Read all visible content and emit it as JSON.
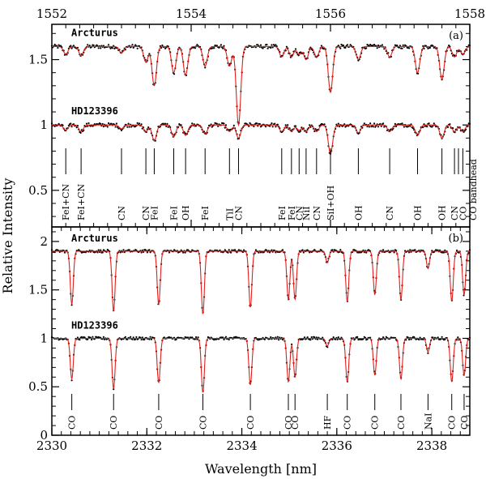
{
  "chart_data": {
    "type": "line",
    "ylabel": "Relative Intensity",
    "panels": [
      {
        "id": "a",
        "label": "(a)",
        "xaxis_position": "top",
        "xlim": [
          1552,
          1558
        ],
        "xticks": [
          1552,
          1554,
          1556,
          1558
        ],
        "xtick_labels": [
          "1552",
          "1554",
          "1556",
          "1558"
        ],
        "ylim": [
          0.22,
          1.77
        ],
        "yticks": [
          0.5,
          1,
          1.5
        ],
        "ytick_labels": [
          "0.5",
          "1",
          "1.5"
        ],
        "offset": 0.6,
        "series": [
          {
            "name": "Arcturus",
            "offset": 0.6
          },
          {
            "name": "HD123396",
            "offset": 0
          }
        ],
        "lines": [
          {
            "x": 1552.2,
            "id": "FeI+CN",
            "depth_arc": 0.06,
            "depth_hd": 0.04
          },
          {
            "x": 1552.42,
            "id": "FeI+CN",
            "depth_arc": 0.07,
            "depth_hd": 0.05
          },
          {
            "x": 1553.0,
            "id": "CN",
            "depth_arc": 0.05,
            "depth_hd": 0.03
          },
          {
            "x": 1553.35,
            "id": "CN",
            "depth_arc": 0.12,
            "depth_hd": 0.05
          },
          {
            "x": 1553.47,
            "id": "FeI",
            "depth_arc": 0.3,
            "depth_hd": 0.12
          },
          {
            "x": 1553.75,
            "id": "FeI",
            "depth_arc": 0.2,
            "depth_hd": 0.09
          },
          {
            "x": 1553.92,
            "id": "OH",
            "depth_arc": 0.22,
            "depth_hd": 0.08
          },
          {
            "x": 1554.2,
            "id": "FeI",
            "depth_arc": 0.15,
            "depth_hd": 0.07
          },
          {
            "x": 1554.55,
            "id": "TiI",
            "depth_arc": 0.15,
            "depth_hd": 0.05
          },
          {
            "x": 1554.68,
            "id": "CN",
            "depth_arc": 0.6,
            "depth_hd": 0.1
          },
          {
            "x": 1555.3,
            "id": "FeI",
            "depth_arc": 0.08,
            "depth_hd": 0.05
          },
          {
            "x": 1555.44,
            "id": "FeI",
            "depth_arc": 0.08,
            "depth_hd": 0.05
          },
          {
            "x": 1555.55,
            "id": "CN",
            "depth_arc": 0.06,
            "depth_hd": 0.04
          },
          {
            "x": 1555.65,
            "id": "NiI",
            "depth_arc": 0.1,
            "depth_hd": 0.05
          },
          {
            "x": 1555.8,
            "id": "CN",
            "depth_arc": 0.08,
            "depth_hd": 0.05
          },
          {
            "x": 1556.0,
            "id": "SiI+OH",
            "depth_arc": 0.35,
            "depth_hd": 0.22
          },
          {
            "x": 1556.4,
            "id": "OH",
            "depth_arc": 0.1,
            "depth_hd": 0.06
          },
          {
            "x": 1556.85,
            "id": "CN",
            "depth_arc": 0.08,
            "depth_hd": 0.05
          },
          {
            "x": 1557.25,
            "id": "OH",
            "depth_arc": 0.2,
            "depth_hd": 0.08
          },
          {
            "x": 1557.6,
            "id": "OH",
            "depth_arc": 0.25,
            "depth_hd": 0.1
          },
          {
            "x": 1557.78,
            "id": "CN",
            "depth_arc": 0.08,
            "depth_hd": 0.05
          },
          {
            "x": 1557.9,
            "id": "CO",
            "depth_arc": 0.06,
            "depth_hd": 0.05
          }
        ],
        "bandhead": {
          "x": 1558.0,
          "id": "CO bandhead"
        }
      },
      {
        "id": "b",
        "label": "(b)",
        "xaxis_position": "bottom",
        "xlabel": "Wavelength [nm]",
        "xlim": [
          2330,
          2338.8
        ],
        "xticks": [
          2330,
          2332,
          2334,
          2336,
          2338
        ],
        "xtick_labels": [
          "2330",
          "2332",
          "2334",
          "2336",
          "2338"
        ],
        "ylim": [
          0,
          2.15
        ],
        "yticks": [
          0,
          0.5,
          1,
          1.5,
          2
        ],
        "ytick_labels": [
          "0",
          "0.5",
          "1",
          "1.5",
          "2"
        ],
        "series": [
          {
            "name": "Arcturus",
            "offset": 0.9
          },
          {
            "name": "HD123396",
            "offset": 0
          }
        ],
        "lines": [
          {
            "x": 2330.42,
            "id": "CO",
            "depth_arc": 0.55,
            "depth_hd": 0.42
          },
          {
            "x": 2331.3,
            "id": "CO",
            "depth_arc": 0.62,
            "depth_hd": 0.52
          },
          {
            "x": 2332.25,
            "id": "CO",
            "depth_arc": 0.55,
            "depth_hd": 0.46
          },
          {
            "x": 2333.18,
            "id": "CO",
            "depth_arc": 0.65,
            "depth_hd": 0.56
          },
          {
            "x": 2334.18,
            "id": "CO",
            "depth_arc": 0.58,
            "depth_hd": 0.48
          },
          {
            "x": 2334.98,
            "id": "CO",
            "depth_arc": 0.5,
            "depth_hd": 0.45
          },
          {
            "x": 2335.12,
            "id": "CO",
            "depth_arc": 0.5,
            "depth_hd": 0.4
          },
          {
            "x": 2335.8,
            "id": "HF",
            "depth_arc": 0.12,
            "depth_hd": 0.08
          },
          {
            "x": 2336.22,
            "id": "CO",
            "depth_arc": 0.52,
            "depth_hd": 0.45
          },
          {
            "x": 2336.8,
            "id": "CO",
            "depth_arc": 0.45,
            "depth_hd": 0.38
          },
          {
            "x": 2337.35,
            "id": "CO",
            "depth_arc": 0.5,
            "depth_hd": 0.42
          },
          {
            "x": 2337.92,
            "id": "NaI",
            "depth_arc": 0.18,
            "depth_hd": 0.14
          },
          {
            "x": 2338.42,
            "id": "CO",
            "depth_arc": 0.52,
            "depth_hd": 0.45
          },
          {
            "x": 2338.68,
            "id": "CO",
            "depth_arc": 0.45,
            "depth_hd": 0.38
          }
        ]
      }
    ]
  }
}
